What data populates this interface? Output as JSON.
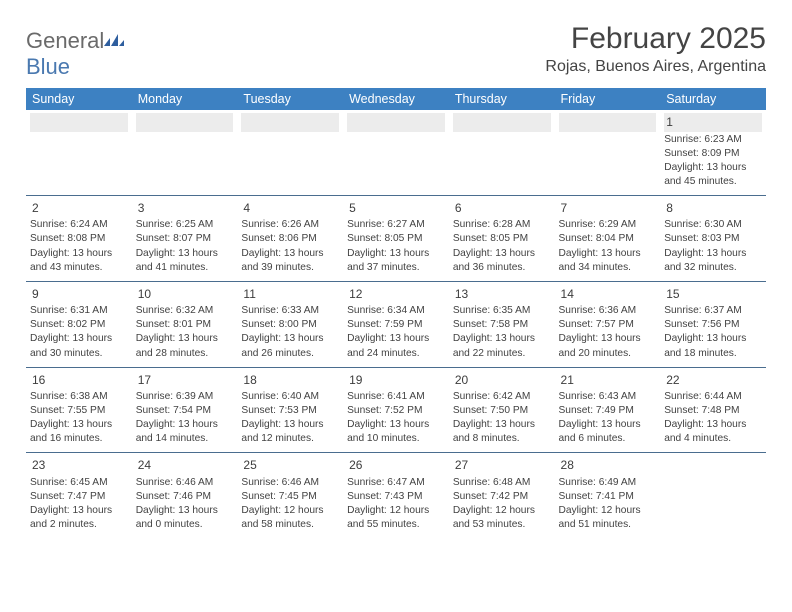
{
  "logo": {
    "general": "General",
    "blue": "Blue"
  },
  "title": "February 2025",
  "location": "Rojas, Buenos Aires, Argentina",
  "colors": {
    "header_bg": "#3d81c2",
    "header_text": "#ffffff",
    "row_divider": "#4a6d8f",
    "daynum_bg": "#ececec",
    "text": "#424242"
  },
  "day_names": [
    "Sunday",
    "Monday",
    "Tuesday",
    "Wednesday",
    "Thursday",
    "Friday",
    "Saturday"
  ],
  "weeks": [
    [
      null,
      null,
      null,
      null,
      null,
      null,
      {
        "n": "1",
        "sr": "Sunrise: 6:23 AM",
        "ss": "Sunset: 8:09 PM",
        "d1": "Daylight: 13 hours",
        "d2": "and 45 minutes."
      }
    ],
    [
      {
        "n": "2",
        "sr": "Sunrise: 6:24 AM",
        "ss": "Sunset: 8:08 PM",
        "d1": "Daylight: 13 hours",
        "d2": "and 43 minutes."
      },
      {
        "n": "3",
        "sr": "Sunrise: 6:25 AM",
        "ss": "Sunset: 8:07 PM",
        "d1": "Daylight: 13 hours",
        "d2": "and 41 minutes."
      },
      {
        "n": "4",
        "sr": "Sunrise: 6:26 AM",
        "ss": "Sunset: 8:06 PM",
        "d1": "Daylight: 13 hours",
        "d2": "and 39 minutes."
      },
      {
        "n": "5",
        "sr": "Sunrise: 6:27 AM",
        "ss": "Sunset: 8:05 PM",
        "d1": "Daylight: 13 hours",
        "d2": "and 37 minutes."
      },
      {
        "n": "6",
        "sr": "Sunrise: 6:28 AM",
        "ss": "Sunset: 8:05 PM",
        "d1": "Daylight: 13 hours",
        "d2": "and 36 minutes."
      },
      {
        "n": "7",
        "sr": "Sunrise: 6:29 AM",
        "ss": "Sunset: 8:04 PM",
        "d1": "Daylight: 13 hours",
        "d2": "and 34 minutes."
      },
      {
        "n": "8",
        "sr": "Sunrise: 6:30 AM",
        "ss": "Sunset: 8:03 PM",
        "d1": "Daylight: 13 hours",
        "d2": "and 32 minutes."
      }
    ],
    [
      {
        "n": "9",
        "sr": "Sunrise: 6:31 AM",
        "ss": "Sunset: 8:02 PM",
        "d1": "Daylight: 13 hours",
        "d2": "and 30 minutes."
      },
      {
        "n": "10",
        "sr": "Sunrise: 6:32 AM",
        "ss": "Sunset: 8:01 PM",
        "d1": "Daylight: 13 hours",
        "d2": "and 28 minutes."
      },
      {
        "n": "11",
        "sr": "Sunrise: 6:33 AM",
        "ss": "Sunset: 8:00 PM",
        "d1": "Daylight: 13 hours",
        "d2": "and 26 minutes."
      },
      {
        "n": "12",
        "sr": "Sunrise: 6:34 AM",
        "ss": "Sunset: 7:59 PM",
        "d1": "Daylight: 13 hours",
        "d2": "and 24 minutes."
      },
      {
        "n": "13",
        "sr": "Sunrise: 6:35 AM",
        "ss": "Sunset: 7:58 PM",
        "d1": "Daylight: 13 hours",
        "d2": "and 22 minutes."
      },
      {
        "n": "14",
        "sr": "Sunrise: 6:36 AM",
        "ss": "Sunset: 7:57 PM",
        "d1": "Daylight: 13 hours",
        "d2": "and 20 minutes."
      },
      {
        "n": "15",
        "sr": "Sunrise: 6:37 AM",
        "ss": "Sunset: 7:56 PM",
        "d1": "Daylight: 13 hours",
        "d2": "and 18 minutes."
      }
    ],
    [
      {
        "n": "16",
        "sr": "Sunrise: 6:38 AM",
        "ss": "Sunset: 7:55 PM",
        "d1": "Daylight: 13 hours",
        "d2": "and 16 minutes."
      },
      {
        "n": "17",
        "sr": "Sunrise: 6:39 AM",
        "ss": "Sunset: 7:54 PM",
        "d1": "Daylight: 13 hours",
        "d2": "and 14 minutes."
      },
      {
        "n": "18",
        "sr": "Sunrise: 6:40 AM",
        "ss": "Sunset: 7:53 PM",
        "d1": "Daylight: 13 hours",
        "d2": "and 12 minutes."
      },
      {
        "n": "19",
        "sr": "Sunrise: 6:41 AM",
        "ss": "Sunset: 7:52 PM",
        "d1": "Daylight: 13 hours",
        "d2": "and 10 minutes."
      },
      {
        "n": "20",
        "sr": "Sunrise: 6:42 AM",
        "ss": "Sunset: 7:50 PM",
        "d1": "Daylight: 13 hours",
        "d2": "and 8 minutes."
      },
      {
        "n": "21",
        "sr": "Sunrise: 6:43 AM",
        "ss": "Sunset: 7:49 PM",
        "d1": "Daylight: 13 hours",
        "d2": "and 6 minutes."
      },
      {
        "n": "22",
        "sr": "Sunrise: 6:44 AM",
        "ss": "Sunset: 7:48 PM",
        "d1": "Daylight: 13 hours",
        "d2": "and 4 minutes."
      }
    ],
    [
      {
        "n": "23",
        "sr": "Sunrise: 6:45 AM",
        "ss": "Sunset: 7:47 PM",
        "d1": "Daylight: 13 hours",
        "d2": "and 2 minutes."
      },
      {
        "n": "24",
        "sr": "Sunrise: 6:46 AM",
        "ss": "Sunset: 7:46 PM",
        "d1": "Daylight: 13 hours",
        "d2": "and 0 minutes."
      },
      {
        "n": "25",
        "sr": "Sunrise: 6:46 AM",
        "ss": "Sunset: 7:45 PM",
        "d1": "Daylight: 12 hours",
        "d2": "and 58 minutes."
      },
      {
        "n": "26",
        "sr": "Sunrise: 6:47 AM",
        "ss": "Sunset: 7:43 PM",
        "d1": "Daylight: 12 hours",
        "d2": "and 55 minutes."
      },
      {
        "n": "27",
        "sr": "Sunrise: 6:48 AM",
        "ss": "Sunset: 7:42 PM",
        "d1": "Daylight: 12 hours",
        "d2": "and 53 minutes."
      },
      {
        "n": "28",
        "sr": "Sunrise: 6:49 AM",
        "ss": "Sunset: 7:41 PM",
        "d1": "Daylight: 12 hours",
        "d2": "and 51 minutes."
      },
      null
    ]
  ]
}
